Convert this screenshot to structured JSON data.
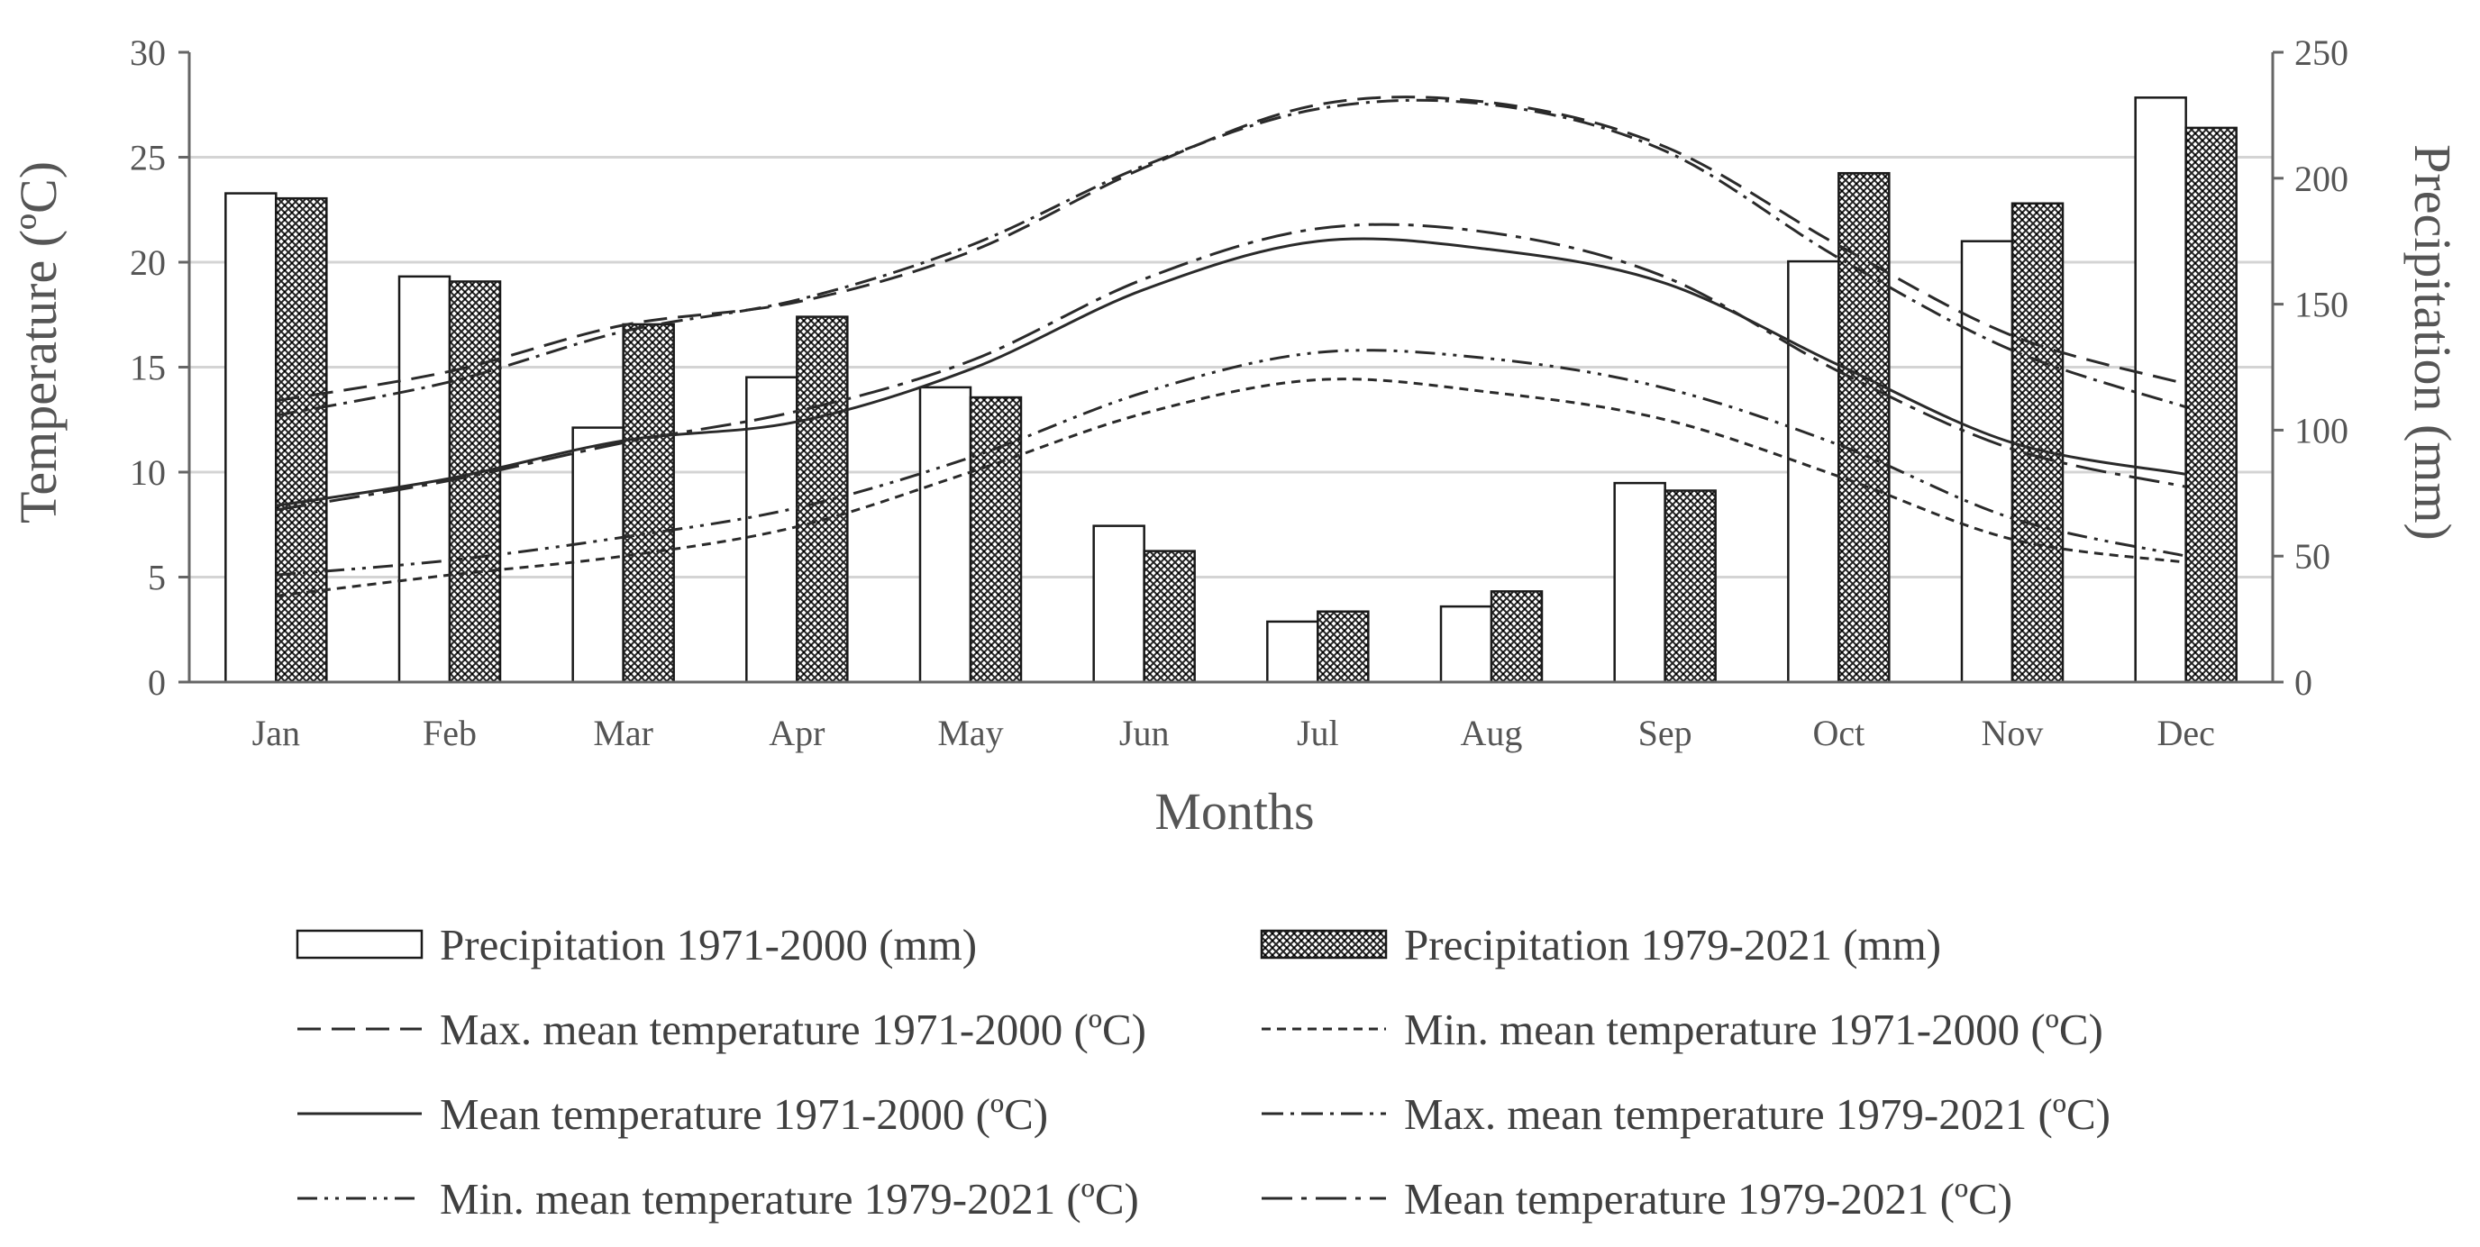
{
  "chart_data": {
    "type": "bar",
    "categories": [
      "Jan",
      "Feb",
      "Mar",
      "Apr",
      "May",
      "Jun",
      "Jul",
      "Aug",
      "Sep",
      "Oct",
      "Nov",
      "Dec"
    ],
    "xlabel": "Months",
    "ylabel_left": "Temperature (ºC)",
    "ylabel_right": "Precipitation (mm)",
    "ylim_left": [
      0,
      30
    ],
    "ylim_right": [
      0,
      250
    ],
    "yticks_left": [
      "0",
      "5",
      "10",
      "15",
      "20",
      "25",
      "30"
    ],
    "yticks_right": [
      "0",
      "50",
      "100",
      "150",
      "200",
      "250"
    ],
    "grid": true,
    "bar_series": [
      {
        "name": "Precipitation 1971-2000 (mm)",
        "axis": "right",
        "pattern": "plain",
        "values": [
          194,
          161,
          101,
          121,
          117,
          62,
          24,
          30,
          79,
          167,
          175,
          232
        ]
      },
      {
        "name": "Precipitation 1979-2021 (mm)",
        "axis": "right",
        "pattern": "cross",
        "values": [
          192,
          159,
          142,
          145,
          113,
          52,
          28,
          36,
          76,
          202,
          190,
          220
        ]
      }
    ],
    "line_series": [
      {
        "name": "Max. mean temperature 1971-2000 (ºC)",
        "axis": "left",
        "dash": "long-dash",
        "values": [
          13.4,
          14.8,
          17.0,
          18.1,
          20.5,
          24.5,
          27.5,
          27.6,
          25.5,
          20.8,
          16.5,
          14.2
        ]
      },
      {
        "name": "Min. mean temperature 1971-2000 (ºC)",
        "axis": "left",
        "dash": "short-dash",
        "values": [
          4.1,
          5.1,
          6.0,
          7.4,
          10.0,
          12.8,
          14.4,
          13.8,
          12.5,
          9.8,
          6.8,
          5.7
        ]
      },
      {
        "name": "Mean temperature 1971-2000 (ºC)",
        "axis": "left",
        "dash": "solid",
        "values": [
          8.4,
          9.7,
          11.5,
          12.4,
          14.9,
          18.7,
          21.0,
          20.6,
          19.0,
          15.1,
          11.4,
          9.9
        ]
      },
      {
        "name": "Max. mean temperature 1979-2021 (ºC)",
        "axis": "left",
        "dash": "dash-dot",
        "values": [
          12.7,
          14.3,
          16.7,
          18.2,
          20.8,
          24.6,
          27.3,
          27.5,
          25.3,
          20.2,
          15.8,
          13.1
        ]
      },
      {
        "name": "Min. mean temperature 1979-2021 (ºC)",
        "axis": "left",
        "dash": "dash-dot-dot",
        "values": [
          5.1,
          5.8,
          6.9,
          8.3,
          10.7,
          13.8,
          15.7,
          15.4,
          14.0,
          11.3,
          7.8,
          6.0
        ]
      },
      {
        "name": "Mean temperature 1979-2021 (ºC)",
        "axis": "left",
        "dash": "long-dash-dot",
        "values": [
          8.2,
          9.6,
          11.4,
          12.9,
          15.3,
          19.2,
          21.6,
          21.4,
          19.3,
          14.8,
          11.1,
          9.3
        ]
      }
    ]
  }
}
